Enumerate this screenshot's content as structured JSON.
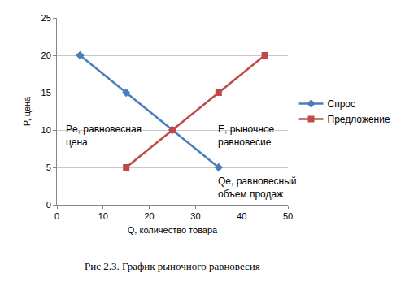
{
  "chart_data": {
    "type": "line",
    "caption": "Рис 2.3. График рыночного равновесия",
    "xlabel": "Q, количество товара",
    "ylabel": "P, цена",
    "series": [
      {
        "name": "Спрос",
        "color": "#4a7ebb",
        "marker": "diamond",
        "x": [
          5,
          15,
          25,
          35
        ],
        "values": [
          20,
          15,
          10,
          5
        ]
      },
      {
        "name": "Предложение",
        "color": "#be4b48",
        "marker": "square",
        "x": [
          15,
          25,
          35,
          45
        ],
        "values": [
          5,
          10,
          15,
          20
        ]
      }
    ],
    "xlim": [
      0,
      50
    ],
    "xticks": [
      0,
      10,
      20,
      30,
      40,
      50
    ],
    "ylim": [
      0,
      25
    ],
    "yticks": [
      0,
      5,
      10,
      15,
      20,
      25
    ],
    "grid": true,
    "legend": "right",
    "annotations": [
      "Pe, равновесная\nцена",
      "E, рыночное\nравновесие",
      "Qe, равновесный\nобъем продаж"
    ]
  }
}
